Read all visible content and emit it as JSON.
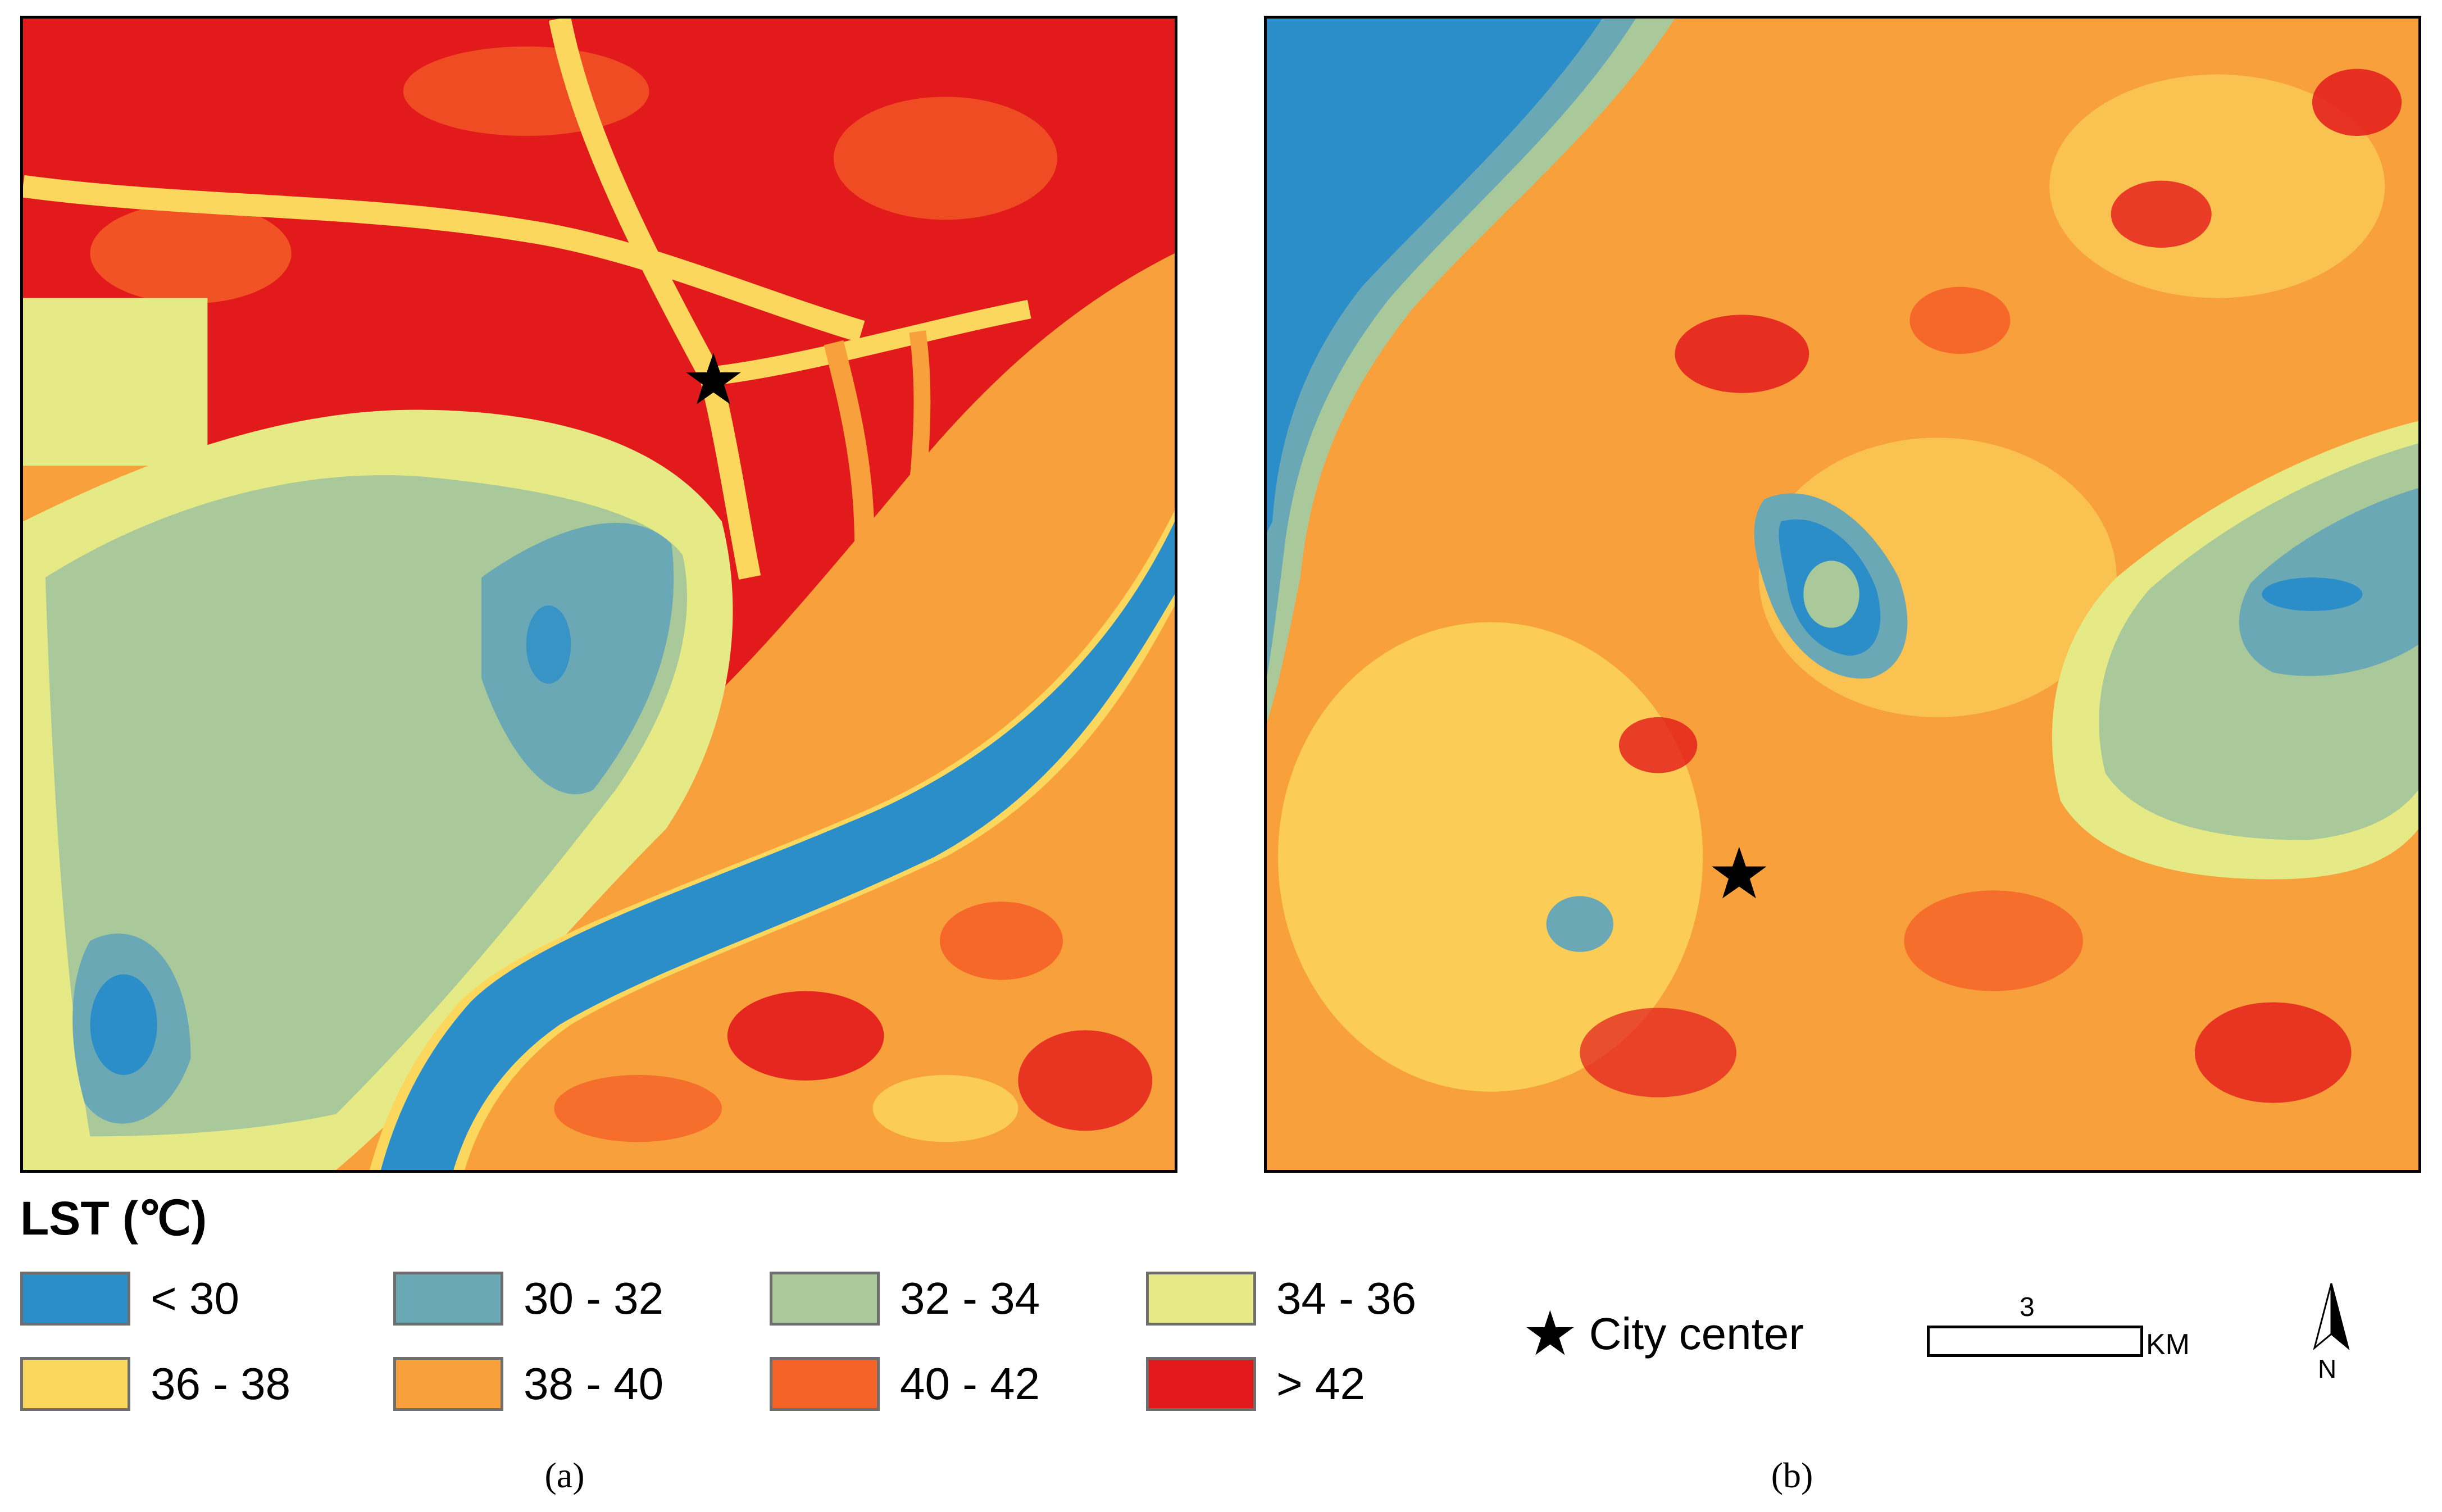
{
  "colors": {
    "lt30": "#2c8ec9",
    "r30_32": "#6aa8b6",
    "r32_34": "#a9c99a",
    "r34_36": "#e6ea86",
    "r36_38": "#fbd85d",
    "r38_40": "#f8a13c",
    "r40_42": "#f46228",
    "gt42": "#e31a1c"
  },
  "panels": [
    {
      "caption": "(a)"
    },
    {
      "caption": "(b)"
    }
  ],
  "legend": {
    "title": "LST (℃)",
    "items": [
      {
        "label": "< 30",
        "color": "#2c8ec9"
      },
      {
        "label": "30 - 32",
        "color": "#6aa8b6"
      },
      {
        "label": "32 - 34",
        "color": "#a9c99a"
      },
      {
        "label": "34 - 36",
        "color": "#e6ea86"
      },
      {
        "label": "36 - 38",
        "color": "#fbd85d"
      },
      {
        "label": "38 - 40",
        "color": "#f8a13c"
      },
      {
        "label": "40 - 42",
        "color": "#f46228"
      },
      {
        "label": "> 42",
        "color": "#e31a1c"
      }
    ],
    "city_center_label": "City center",
    "star_symbol": "★"
  },
  "scale": {
    "value": "3",
    "unit": "KM"
  },
  "north": {
    "label": "N"
  }
}
